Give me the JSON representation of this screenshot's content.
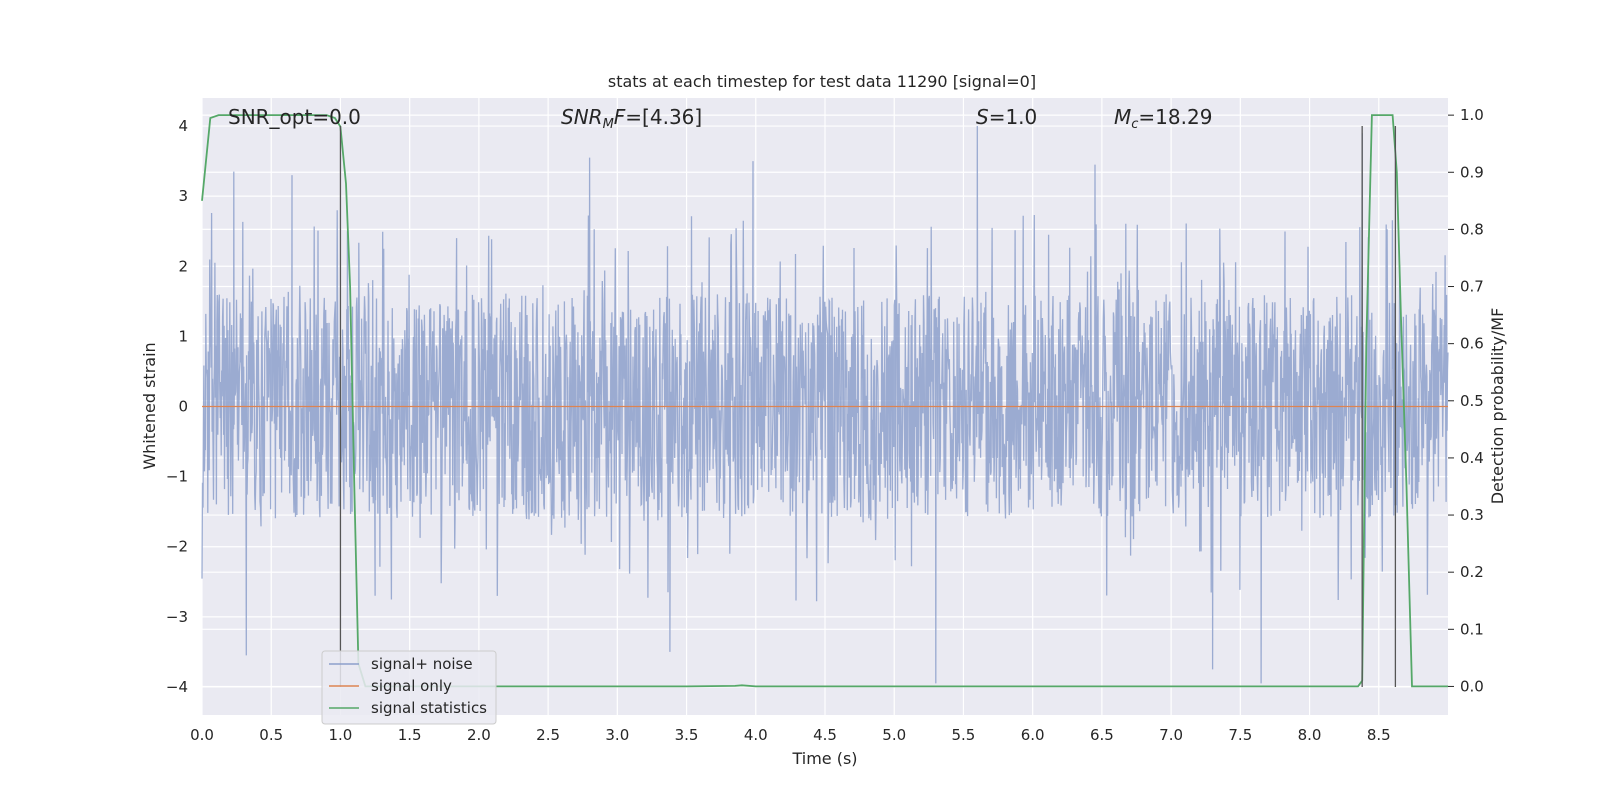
{
  "chart_data": {
    "type": "line",
    "title": "stats at each timestep for test data 11290 [signal=0]",
    "xlabel": "Time (s)",
    "ylabel_left": "Whitened strain",
    "ylabel_right": "Detection probability/MF",
    "xlim": [
      0.0,
      9.0
    ],
    "ylim_left": [
      -4.4,
      4.4
    ],
    "ylim_right": [
      -0.05,
      1.03
    ],
    "xticks": [
      0.0,
      0.5,
      1.0,
      1.5,
      2.0,
      2.5,
      3.0,
      3.5,
      4.0,
      4.5,
      5.0,
      5.5,
      6.0,
      6.5,
      7.0,
      7.5,
      8.0,
      8.5
    ],
    "xtick_labels": [
      "0.0",
      "0.5",
      "1.0",
      "1.5",
      "2.0",
      "2.5",
      "3.0",
      "3.5",
      "4.0",
      "4.5",
      "5.0",
      "5.5",
      "6.0",
      "6.5",
      "7.0",
      "7.5",
      "8.0",
      "8.5"
    ],
    "yticks_left": [
      -4,
      -3,
      -2,
      -1,
      0,
      1,
      2,
      3,
      4
    ],
    "ytick_labels_left": [
      "−4",
      "−3",
      "−2",
      "−1",
      "0",
      "1",
      "2",
      "3",
      "4"
    ],
    "yticks_right": [
      0.0,
      0.1,
      0.2,
      0.3,
      0.4,
      0.5,
      0.6,
      0.7,
      0.8,
      0.9,
      1.0
    ],
    "ytick_labels_right": [
      "0.0",
      "0.1",
      "0.2",
      "0.3",
      "0.4",
      "0.5",
      "0.6",
      "0.7",
      "0.8",
      "0.9",
      "1.0"
    ],
    "grid": true,
    "legend_position": "lower-left",
    "annotations": {
      "snr_opt": "SNR_opt=0.0",
      "snr_mf_sym": "SNR",
      "snr_mf_sub": "M",
      "snr_mf_sym2": "F",
      "snr_mf_val": "=[4.36]",
      "s_sym": "S",
      "s_val": "=1.0",
      "mc_sym": "M",
      "mc_sub": "c",
      "mc_val": "=18.29"
    },
    "colors": {
      "background": "#eaeaf2",
      "grid": "#ffffff",
      "noise": "#8da0cb",
      "signal_only": "#dd8452",
      "statistics": "#55a868",
      "vline": "#555555"
    },
    "series": [
      {
        "name": "signal+ noise",
        "axis": "left",
        "description_note": "",
        "x_range": [
          0.0,
          9.0
        ],
        "envelope_typical": [
          -1.6,
          1.6
        ],
        "peaks": [
          {
            "x": 0.23,
            "y": 3.35
          },
          {
            "x": 0.32,
            "y": -3.55
          },
          {
            "x": 0.65,
            "y": 3.3
          },
          {
            "x": 1.05,
            "y": 2.5
          },
          {
            "x": 1.25,
            "y": -2.7
          },
          {
            "x": 2.8,
            "y": 3.55
          },
          {
            "x": 3.38,
            "y": -3.5
          },
          {
            "x": 3.98,
            "y": 3.5
          },
          {
            "x": 5.3,
            "y": -3.95
          },
          {
            "x": 5.6,
            "y": 4.0
          },
          {
            "x": 6.45,
            "y": 3.45
          },
          {
            "x": 7.3,
            "y": -3.75
          },
          {
            "x": 7.65,
            "y": -3.95
          },
          {
            "x": 8.38,
            "y": 3.9
          }
        ]
      },
      {
        "name": "signal only",
        "axis": "left",
        "x": [
          0.0,
          9.0
        ],
        "y": [
          0.0,
          0.0
        ]
      },
      {
        "name": "signal statistics",
        "axis": "right",
        "x": [
          0.0,
          0.06,
          0.12,
          0.2,
          0.5,
          0.9,
          0.96,
          1.0,
          1.04,
          1.07,
          1.1,
          1.13,
          1.18,
          1.22,
          1.5,
          3.5,
          3.85,
          3.9,
          4.0,
          8.0,
          8.35,
          8.38,
          8.41,
          8.45,
          8.5,
          8.6,
          8.63,
          8.66,
          8.7,
          8.74,
          8.8,
          9.0
        ],
        "y": [
          0.85,
          0.995,
          1.0,
          1.0,
          1.0,
          1.0,
          0.995,
          0.98,
          0.88,
          0.7,
          0.35,
          0.04,
          0.0,
          0.0,
          0.0,
          0.0,
          0.001,
          0.002,
          0.0,
          0.0,
          0.0,
          0.01,
          0.6,
          1.0,
          1.0,
          1.0,
          0.9,
          0.65,
          0.35,
          0.0,
          0.0,
          0.0
        ]
      }
    ],
    "vlines": [
      1.0,
      8.38,
      8.62
    ]
  }
}
